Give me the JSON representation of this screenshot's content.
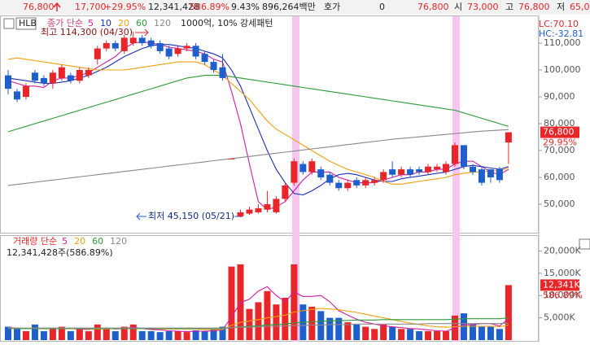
{
  "header": {
    "price": "76,800",
    "change": "17,700",
    "rate": "+29.95%",
    "volume": "12,341,428",
    "volume_ratio": "586.89%",
    "turnover": "9.43%",
    "amount": "896,264백만",
    "quote_label": "호가",
    "quote": "0",
    "quote_price": "76,800",
    "open_label": "시",
    "open": "73,000",
    "high_label": "고",
    "high": "76,800",
    "low_label": "저",
    "low": "65,0"
  },
  "panel": {
    "symbol": "HLB",
    "pattern": "1000억, 10% 강세패턴",
    "lc": "LC:70.10",
    "hc": "HC:-32.81",
    "high_note": "최고 114,300 (04/30)",
    "low_note": "최저 45,150 (05/21)",
    "volume_info": "12,341,428주(586.89%)"
  },
  "chart_data": [
    {
      "type": "candlestick",
      "legend_title": "종가 단순",
      "up_color": "#e8262a",
      "down_color": "#1f5fcc",
      "ylim": [
        39700,
        120000
      ],
      "yticks": [
        {
          "value": 50000,
          "label": "50,000"
        },
        {
          "value": 60000,
          "label": "60,000"
        },
        {
          "value": 70000,
          "label": "70,000"
        },
        {
          "value": 80000,
          "label": "80,000"
        },
        {
          "value": 90000,
          "label": "90,000"
        },
        {
          "value": 100000,
          "label": "100,000"
        },
        {
          "value": 110000,
          "label": "110,000"
        }
      ],
      "last_label": {
        "value": 76800,
        "label": "76,800"
      },
      "change_label": "29.95%",
      "open": [
        98000,
        92000,
        90000,
        99000,
        97000,
        95000,
        97000,
        98000,
        96000,
        98000,
        104000,
        108000,
        110000,
        107000,
        110000,
        112000,
        111000,
        110000,
        108000,
        106000,
        108000,
        109000,
        106000,
        103000,
        101000,
        67000,
        45500,
        46500,
        47000,
        48000,
        47000,
        52000,
        58000,
        65000,
        62000,
        63000,
        61000,
        58000,
        56000,
        59000,
        57000,
        58000,
        59000,
        63000,
        61000,
        63000,
        63000,
        62000,
        63000,
        62000,
        65000,
        72000,
        64000,
        63000,
        63000,
        63000,
        73000
      ],
      "high": [
        100000,
        93000,
        95000,
        100000,
        98000,
        100000,
        102000,
        99000,
        101000,
        101000,
        109000,
        111000,
        111000,
        113000,
        114300,
        113000,
        112000,
        111000,
        109000,
        109000,
        110000,
        110000,
        107000,
        104000,
        106000,
        67000,
        48000,
        49000,
        50000,
        55000,
        53000,
        58000,
        67000,
        66000,
        67000,
        64000,
        62000,
        59000,
        59000,
        60000,
        60000,
        60000,
        63000,
        66000,
        64000,
        64000,
        64000,
        65000,
        65000,
        66000,
        73000,
        72000,
        65000,
        64000,
        63000,
        64000,
        76800
      ],
      "low": [
        91000,
        88000,
        89000,
        95000,
        94000,
        93000,
        96000,
        95000,
        95000,
        97000,
        102000,
        107000,
        107000,
        106000,
        109000,
        109000,
        108000,
        106000,
        104000,
        105000,
        107000,
        104000,
        102000,
        99000,
        96000,
        67000,
        45150,
        46000,
        46500,
        47000,
        46500,
        51000,
        57000,
        61000,
        61000,
        59000,
        57000,
        55000,
        55000,
        56000,
        56000,
        57000,
        58000,
        60000,
        60000,
        60000,
        61000,
        61000,
        62000,
        61000,
        64000,
        63000,
        61000,
        57000,
        58000,
        58000,
        65000
      ],
      "close": [
        93000,
        89000,
        94000,
        96000,
        95000,
        99000,
        101000,
        96000,
        100000,
        100000,
        108000,
        110000,
        108000,
        112000,
        112000,
        110000,
        109000,
        107000,
        105000,
        108000,
        109000,
        105000,
        103000,
        100000,
        97000,
        67000,
        47000,
        48000,
        48500,
        50000,
        52000,
        57000,
        66000,
        62000,
        66000,
        60000,
        58000,
        56000,
        58000,
        57000,
        59000,
        59000,
        62000,
        61000,
        63000,
        61000,
        62000,
        64000,
        64000,
        65000,
        72000,
        64000,
        62000,
        58000,
        60000,
        59000,
        76800
      ],
      "series": [
        {
          "name": "5",
          "color": "#d41ca0",
          "values": [
            96000,
            95000,
            94000,
            94000,
            93500,
            96000,
            97000,
            97000,
            98000,
            99000,
            101000,
            103000,
            105000,
            108000,
            110000,
            110500,
            110000,
            109500,
            108500,
            108000,
            107500,
            107000,
            106000,
            104000,
            103000,
            92000,
            80000,
            65000,
            51000,
            48000,
            49000,
            51000,
            55000,
            59000,
            62000,
            62000,
            62000,
            60000,
            59000,
            58000,
            58000,
            58000,
            59000,
            60000,
            61000,
            61000,
            62000,
            62000,
            63000,
            63000,
            65000,
            66000,
            66000,
            64000,
            62000,
            61000,
            63000
          ]
        },
        {
          "name": "10",
          "color": "#1c2fb8",
          "values": [
            97000,
            96500,
            96000,
            95500,
            95000,
            95000,
            95500,
            96000,
            97000,
            98000,
            99500,
            101000,
            103000,
            105000,
            106500,
            108000,
            109000,
            109500,
            109500,
            109000,
            108500,
            108000,
            107000,
            106000,
            104500,
            100000,
            94000,
            86000,
            78000,
            70000,
            63000,
            58000,
            54000,
            53500,
            55000,
            57000,
            59500,
            61000,
            61500,
            61000,
            60000,
            59000,
            58500,
            58500,
            59500,
            60000,
            60500,
            61000,
            61500,
            62000,
            63000,
            64000,
            64500,
            64000,
            63500,
            63000,
            64000
          ]
        },
        {
          "name": "20",
          "color": "#f0a010",
          "values": [
            104000,
            104500,
            104000,
            103500,
            103000,
            102500,
            102000,
            101500,
            101000,
            100500,
            100000,
            100000,
            100000,
            100000,
            100500,
            101000,
            101500,
            102000,
            102500,
            103000,
            103000,
            103000,
            102000,
            100000,
            98000,
            95000,
            92000,
            89000,
            85000,
            81000,
            78000,
            76000,
            74000,
            72000,
            70000,
            68000,
            66000,
            64500,
            63000,
            62000,
            61000,
            60000,
            58500,
            57500,
            57500,
            58000,
            58500,
            59000,
            59500,
            60000,
            61000,
            61500,
            62000,
            62000,
            62500,
            62500,
            63500
          ]
        },
        {
          "name": "60",
          "color": "#2e9a38",
          "values": [
            77000,
            78000,
            79000,
            80000,
            81000,
            82000,
            83000,
            84000,
            85000,
            86000,
            87000,
            88000,
            89000,
            90000,
            91000,
            92000,
            93000,
            94000,
            95000,
            96000,
            97000,
            97500,
            98000,
            98000,
            98000,
            97500,
            97000,
            96500,
            96000,
            95500,
            95000,
            94500,
            94000,
            93500,
            93000,
            92500,
            92000,
            91500,
            91000,
            90500,
            90000,
            89500,
            89000,
            88500,
            88000,
            87500,
            87000,
            86500,
            86000,
            85500,
            85000,
            84000,
            83000,
            82000,
            81000,
            80000,
            79000
          ]
        },
        {
          "name": "120",
          "color": "#8a8a8a",
          "values": [
            57000,
            57400,
            57800,
            58200,
            58600,
            59000,
            59400,
            59800,
            60200,
            60600,
            61000,
            61400,
            61800,
            62200,
            62600,
            63000,
            63400,
            63800,
            64200,
            64600,
            65000,
            65400,
            65800,
            66200,
            66600,
            67000,
            67400,
            67800,
            68200,
            68600,
            69000,
            69400,
            69800,
            70200,
            70600,
            71000,
            71400,
            71800,
            72200,
            72600,
            73000,
            73400,
            73800,
            74200,
            74500,
            74800,
            75100,
            75400,
            75700,
            76000,
            76300,
            76600,
            76900,
            77200,
            77400,
            77600,
            77800
          ]
        }
      ]
    },
    {
      "type": "bar",
      "legend_title": "거래량 단순",
      "ylim": [
        0,
        23000
      ],
      "yticks": [
        {
          "value": 5000,
          "label": "5,000K"
        },
        {
          "value": 10000,
          "label": "10,000K"
        },
        {
          "value": 15000,
          "label": "15,000K"
        },
        {
          "value": 20000,
          "label": "20,000K"
        }
      ],
      "last_label": {
        "value": 12341.428,
        "label": "12,341K"
      },
      "ratio_label": "586.89%",
      "values": [
        3000,
        2500,
        2000,
        3500,
        2000,
        2500,
        3000,
        2000,
        2500,
        2000,
        3500,
        2500,
        2000,
        3000,
        3500,
        2000,
        2000,
        1800,
        2000,
        2000,
        1800,
        2200,
        2000,
        2500,
        3000,
        16500,
        17000,
        7000,
        8500,
        11000,
        8000,
        9500,
        17000,
        8000,
        7500,
        6500,
        5000,
        5000,
        4000,
        3500,
        3000,
        2500,
        3500,
        3000,
        2500,
        2500,
        2000,
        2000,
        2000,
        2000,
        5500,
        6000,
        3500,
        3000,
        3000,
        2500,
        12341.428
      ],
      "series": [
        {
          "name": "5",
          "color": "#d41ca0",
          "values": [
            2800,
            2700,
            2600,
            2700,
            2600,
            2600,
            2600,
            2600,
            2500,
            2400,
            2600,
            2700,
            2500,
            2600,
            2900,
            2600,
            2400,
            2300,
            2100,
            2000,
            1900,
            2000,
            2000,
            2100,
            2300,
            5200,
            8400,
            9200,
            11000,
            12000,
            10000,
            8600,
            10800,
            9800,
            9800,
            10000,
            8600,
            6600,
            5600,
            4700,
            4000,
            3600,
            3200,
            3000,
            2800,
            2600,
            2500,
            2300,
            2100,
            2000,
            2700,
            3400,
            3500,
            3700,
            3700,
            3200,
            4800
          ]
        },
        {
          "name": "20",
          "color": "#f0a010",
          "values": [
            2700,
            2700,
            2600,
            2600,
            2600,
            2600,
            2600,
            2600,
            2600,
            2500,
            2500,
            2500,
            2600,
            2600,
            2600,
            2600,
            2600,
            2500,
            2500,
            2500,
            2500,
            2500,
            2400,
            2400,
            2400,
            3300,
            4000,
            4300,
            4600,
            5000,
            5300,
            5600,
            6300,
            6600,
            6900,
            7100,
            7000,
            6800,
            6500,
            6200,
            5800,
            5400,
            5000,
            4600,
            4200,
            3800,
            3500,
            3200,
            3000,
            2900,
            3000,
            3100,
            3100,
            3100,
            3100,
            3000,
            3400
          ]
        },
        {
          "name": "60",
          "color": "#2e9a38",
          "values": [
            2600,
            2600,
            2600,
            2600,
            2600,
            2600,
            2600,
            2600,
            2600,
            2600,
            2600,
            2600,
            2600,
            2600,
            2600,
            2600,
            2600,
            2600,
            2600,
            2600,
            2600,
            2600,
            2600,
            2600,
            2600,
            2800,
            3000,
            3100,
            3200,
            3400,
            3500,
            3600,
            3900,
            4000,
            4100,
            4200,
            4300,
            4400,
            4400,
            4500,
            4500,
            4500,
            4600,
            4600,
            4600,
            4600,
            4600,
            4600,
            4600,
            4600,
            4700,
            4800,
            4800,
            4800,
            4800,
            4800,
            5000
          ]
        },
        {
          "name": "120",
          "color": "#8a8a8a",
          "values": [
            2700,
            2700,
            2700,
            2700,
            2700,
            2700,
            2700,
            2700,
            2700,
            2700,
            2700,
            2700,
            2700,
            2700,
            2700,
            2700,
            2700,
            2700,
            2700,
            2700,
            2700,
            2700,
            2700,
            2700,
            2700,
            2800,
            2900,
            2900,
            3000,
            3100,
            3100,
            3200,
            3300,
            3300,
            3400,
            3400,
            3500,
            3500,
            3500,
            3600,
            3600,
            3600,
            3600,
            3600,
            3600,
            3600,
            3600,
            3700,
            3700,
            3700,
            3700,
            3700,
            3700,
            3700,
            3700,
            3700,
            3800
          ]
        }
      ]
    }
  ]
}
